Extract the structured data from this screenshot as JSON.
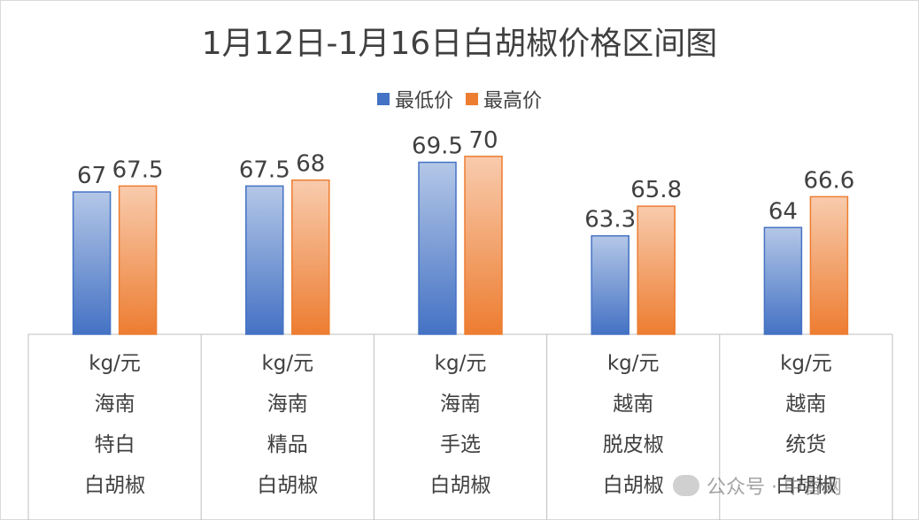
{
  "chart_data": {
    "type": "bar",
    "title": "1月12日-1月16日白胡椒价格区间图",
    "categories": [
      [
        "kg/元",
        "海南",
        "特白",
        "白胡椒"
      ],
      [
        "kg/元",
        "海南",
        "精品",
        "白胡椒"
      ],
      [
        "kg/元",
        "海南",
        "手选",
        "白胡椒"
      ],
      [
        "kg/元",
        "越南",
        "脱皮椒",
        "白胡椒"
      ],
      [
        "kg/元",
        "越南",
        "统货",
        "白胡椒"
      ]
    ],
    "series": [
      {
        "name": "最低价",
        "values": [
          67,
          67.5,
          69.5,
          63.3,
          64
        ],
        "color": "#4472c4"
      },
      {
        "name": "最高价",
        "values": [
          67.5,
          68,
          70,
          65.8,
          66.6
        ],
        "color": "#ed7d31"
      }
    ],
    "ylim": [
      55,
      72
    ],
    "grid": false,
    "legend_position": "top",
    "data_labels": true
  },
  "watermark": {
    "text": "公众号 · 中香网",
    "icon": "wechat-icon"
  }
}
